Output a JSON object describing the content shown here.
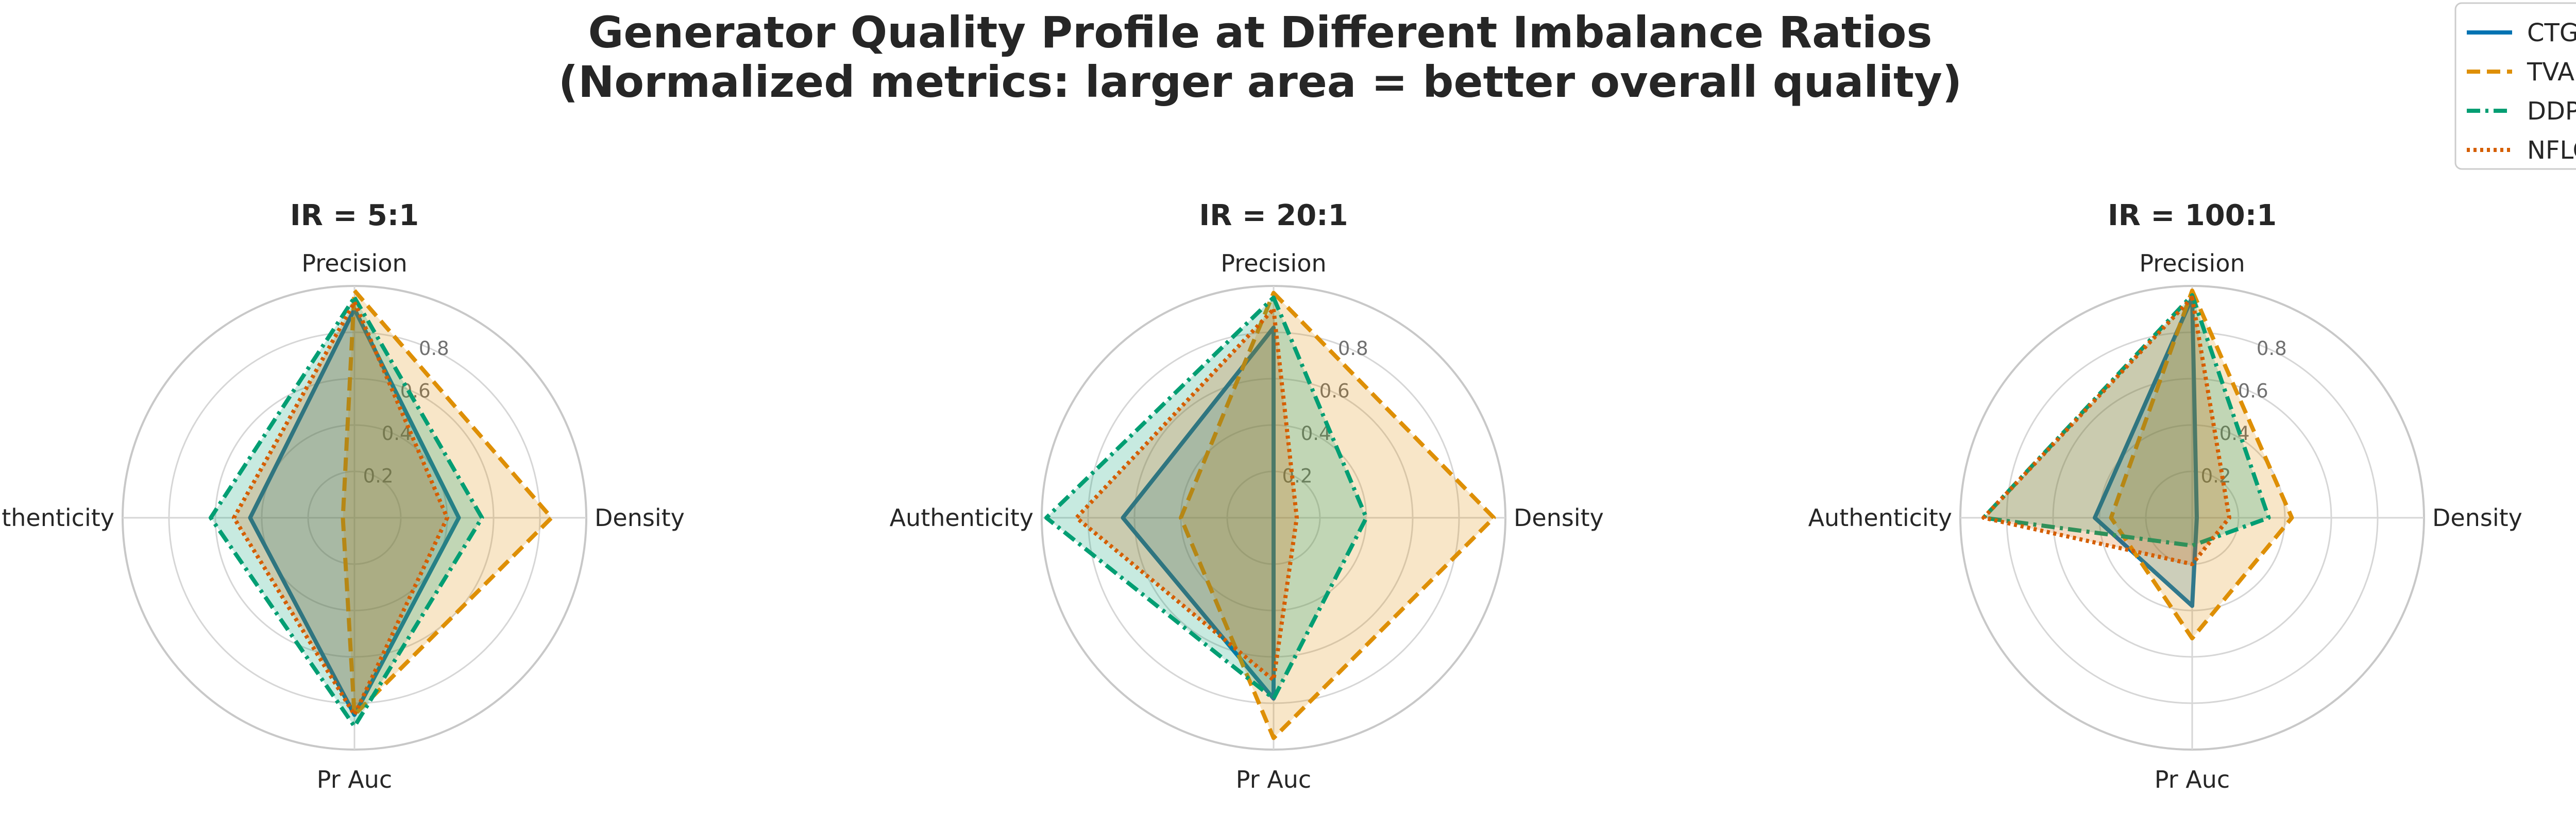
{
  "title_line1": "Generator Quality Profile at Different Imbalance Ratios",
  "title_line2": "(Normalized metrics: larger area = better overall quality)",
  "chart_data": [
    {
      "type": "radar",
      "title": "IR = 5:1",
      "axes": [
        "Precision",
        "Density",
        "Pr Auc",
        "Authenticity"
      ],
      "rlim": [
        0,
        1
      ],
      "rticks": [
        "0.2",
        "0.4",
        "0.6",
        "0.8"
      ],
      "series": [
        {
          "name": "CTGAN",
          "values": [
            0.9,
            0.45,
            0.85,
            0.45
          ]
        },
        {
          "name": "TVAE",
          "values": [
            0.98,
            0.85,
            0.85,
            0.05
          ]
        },
        {
          "name": "DDPM",
          "values": [
            0.95,
            0.55,
            0.9,
            0.62
          ]
        },
        {
          "name": "NFLOW",
          "values": [
            0.93,
            0.4,
            0.85,
            0.52
          ]
        }
      ]
    },
    {
      "type": "radar",
      "title": "IR = 20:1",
      "axes": [
        "Precision",
        "Density",
        "Pr Auc",
        "Authenticity"
      ],
      "rlim": [
        0,
        1
      ],
      "rticks": [
        "0.2",
        "0.4",
        "0.6",
        "0.8"
      ],
      "series": [
        {
          "name": "CTGAN",
          "values": [
            0.82,
            0.0,
            0.78,
            0.65
          ]
        },
        {
          "name": "TVAE",
          "values": [
            0.97,
            0.95,
            0.95,
            0.4
          ]
        },
        {
          "name": "DDPM",
          "values": [
            0.95,
            0.4,
            0.78,
            0.98
          ]
        },
        {
          "name": "NFLOW",
          "values": [
            0.9,
            0.1,
            0.7,
            0.85
          ]
        }
      ]
    },
    {
      "type": "radar",
      "title": "IR = 100:1",
      "axes": [
        "Precision",
        "Density",
        "Pr Auc",
        "Authenticity"
      ],
      "rlim": [
        0,
        1
      ],
      "rticks": [
        "0.2",
        "0.4",
        "0.6",
        "0.8"
      ],
      "series": [
        {
          "name": "CTGAN",
          "values": [
            0.95,
            0.02,
            0.38,
            0.42
          ]
        },
        {
          "name": "TVAE",
          "values": [
            0.98,
            0.43,
            0.52,
            0.35
          ]
        },
        {
          "name": "DDPM",
          "values": [
            0.96,
            0.33,
            0.12,
            0.9
          ]
        },
        {
          "name": "NFLOW",
          "values": [
            0.95,
            0.16,
            0.2,
            0.9
          ]
        }
      ]
    }
  ],
  "legend": {
    "placement": "top-right",
    "entries": [
      {
        "name": "CTGAN",
        "color": "#0173b2",
        "dash": "solid"
      },
      {
        "name": "TVAE",
        "color": "#de8f05",
        "dash": "dashed"
      },
      {
        "name": "DDPM",
        "color": "#029e73",
        "dash": "dashdot"
      },
      {
        "name": "NFLOW",
        "color": "#d55e00",
        "dash": "dotted"
      }
    ]
  }
}
